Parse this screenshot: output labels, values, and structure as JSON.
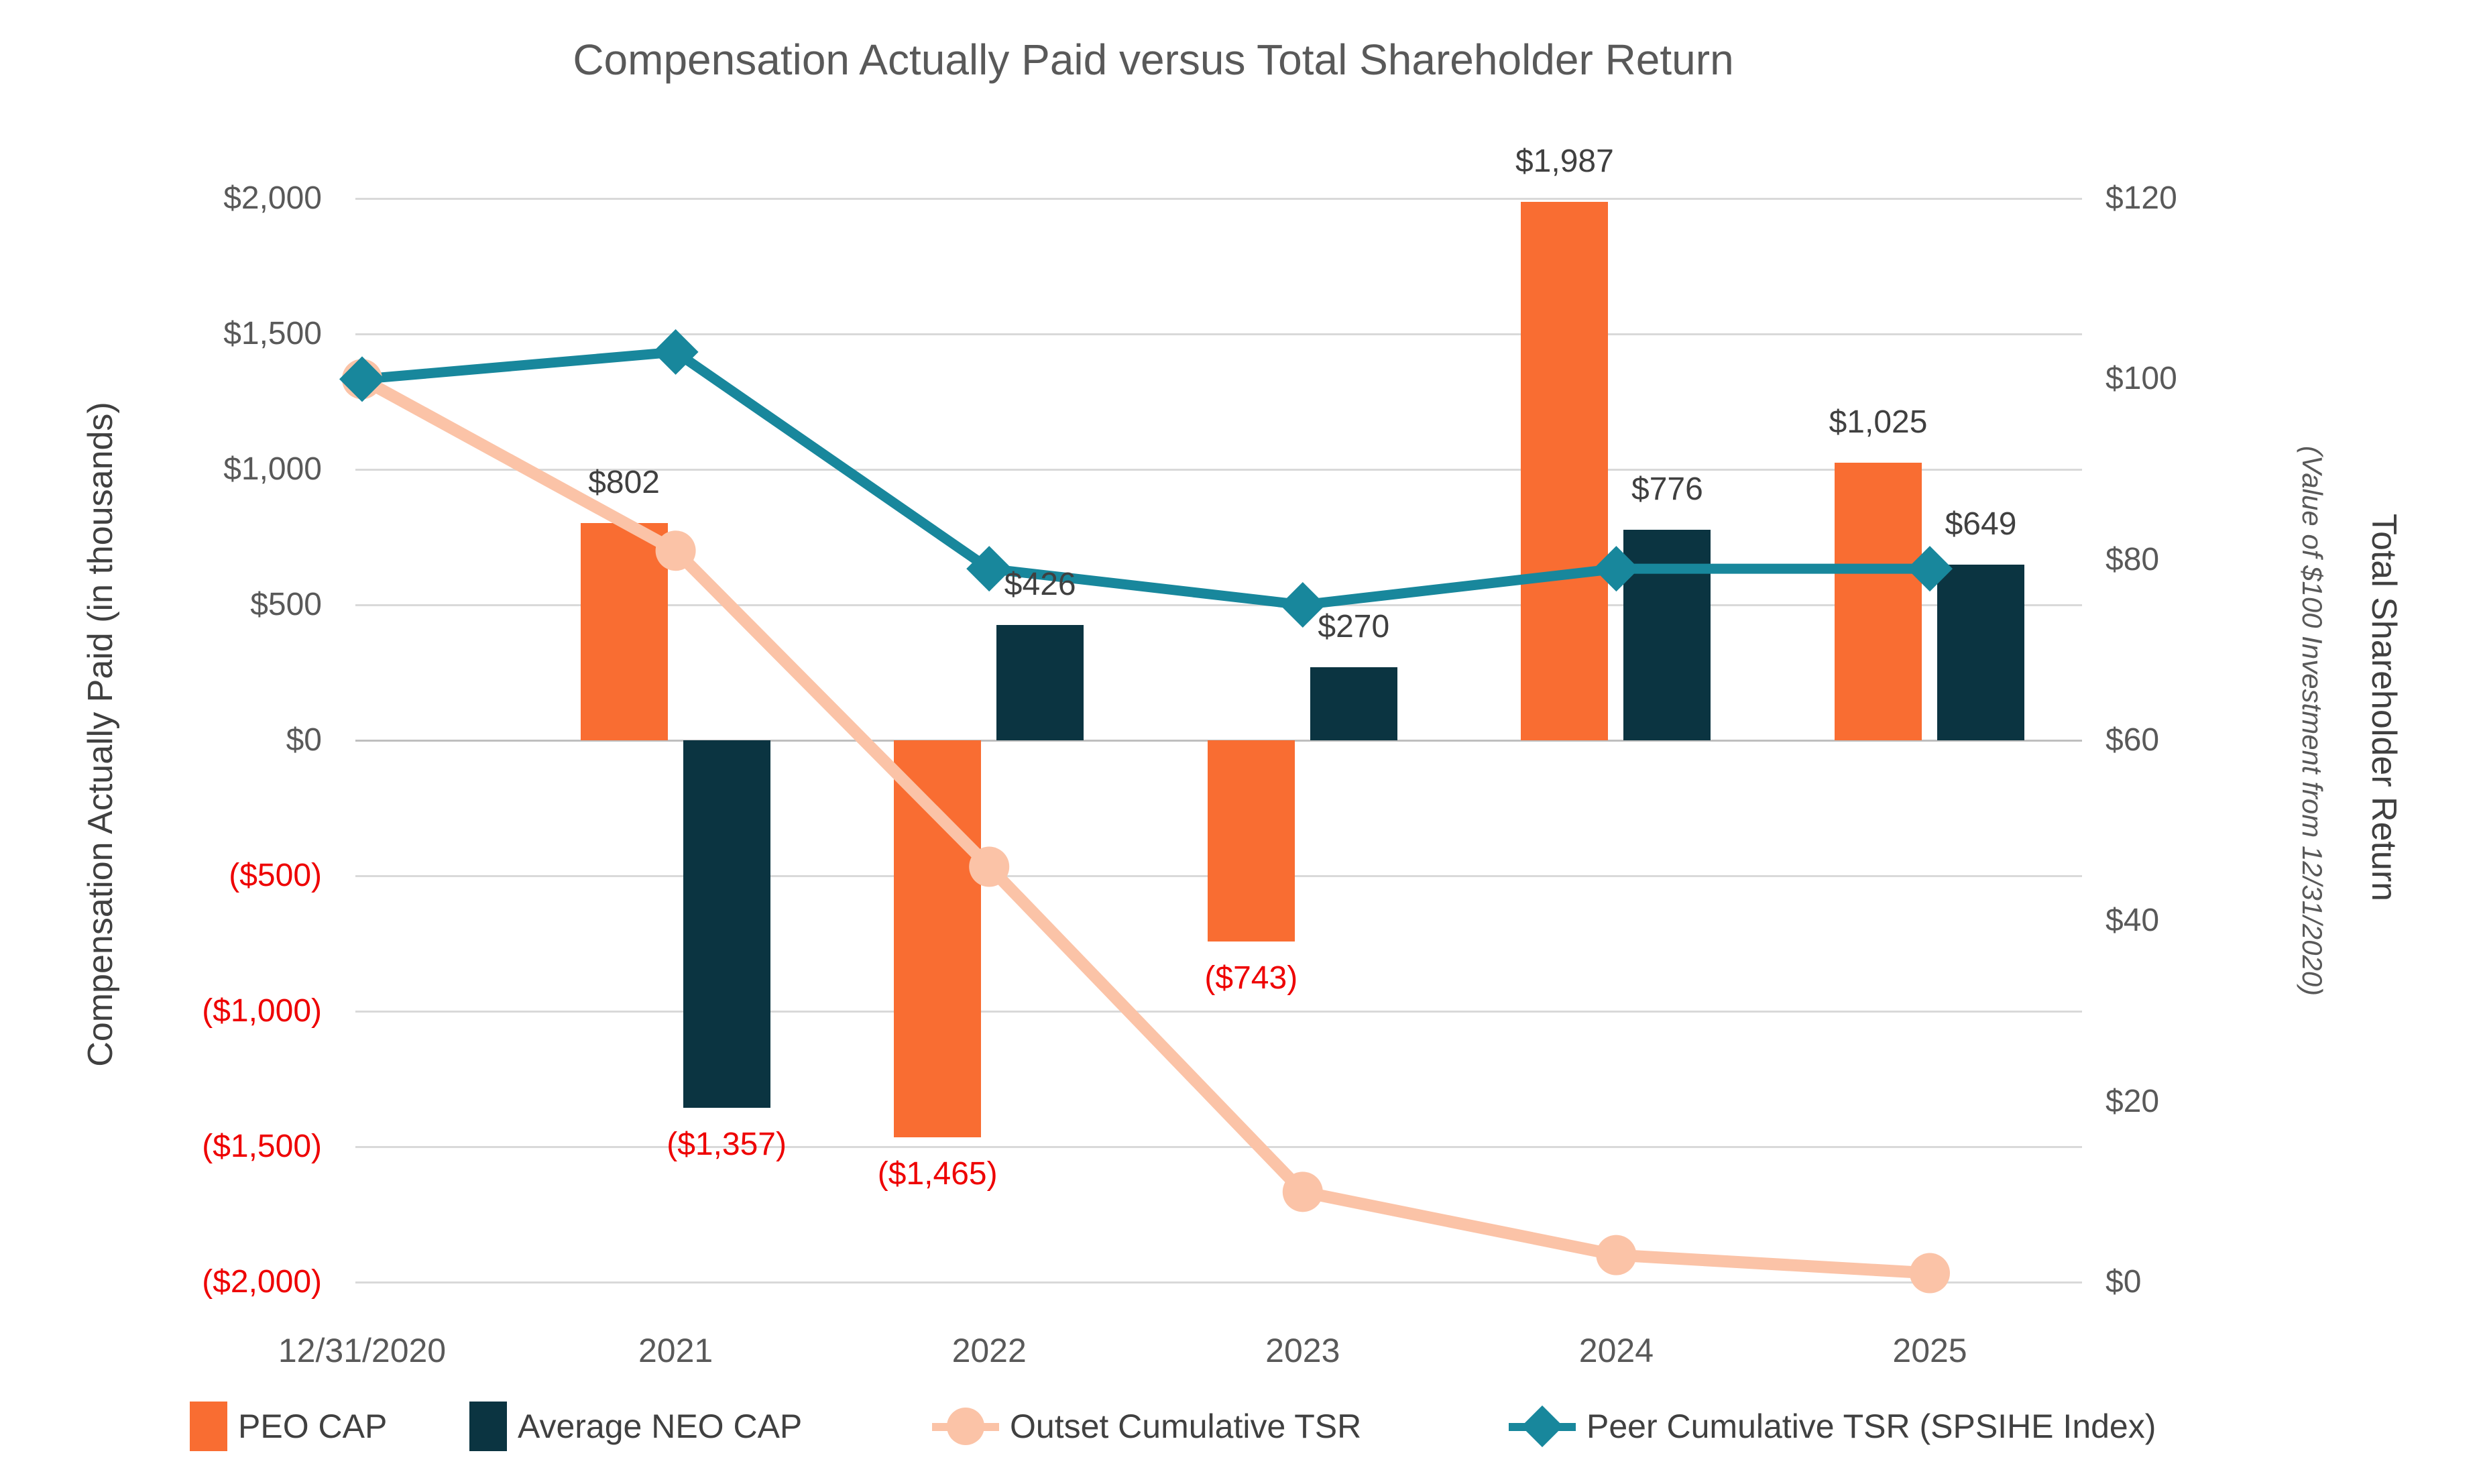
{
  "title": "Compensation Actually Paid versus Total Shareholder Return",
  "left_axis": {
    "title": "Compensation Actually Paid (in thousands)",
    "ticks": [
      {
        "label": "$2,000",
        "value": 2000,
        "negative": false
      },
      {
        "label": "$1,500",
        "value": 1500,
        "negative": false
      },
      {
        "label": "$1,000",
        "value": 1000,
        "negative": false
      },
      {
        "label": "$500",
        "value": 500,
        "negative": false
      },
      {
        "label": "$0",
        "value": 0,
        "negative": false
      },
      {
        "label": "($500)",
        "value": -500,
        "negative": true
      },
      {
        "label": "($1,000)",
        "value": -1000,
        "negative": true
      },
      {
        "label": "($1,500)",
        "value": -1500,
        "negative": true
      },
      {
        "label": "($2,000)",
        "value": -2000,
        "negative": true
      }
    ]
  },
  "right_axis": {
    "title": "Total Shareholder Return",
    "subtitle": "(Value of $100 Investment from 12/31/2020)",
    "ticks": [
      {
        "label": "$120",
        "value": 120
      },
      {
        "label": "$100",
        "value": 100
      },
      {
        "label": "$80",
        "value": 80
      },
      {
        "label": "$60",
        "value": 60
      },
      {
        "label": "$40",
        "value": 40
      },
      {
        "label": "$20",
        "value": 20
      },
      {
        "label": "$0",
        "value": 0
      }
    ]
  },
  "colors": {
    "peo_cap": "#F96D32",
    "avg_neo_cap": "#0B3441",
    "outset_tsr": "#FBC3A7",
    "peer_tsr": "#18879C",
    "gridline": "#D9D9D9",
    "axis_text": "#595959",
    "label_text": "#404040",
    "negative_text": "#EE0000"
  },
  "legend": {
    "items": [
      {
        "label": "PEO CAP",
        "swatch": "bar",
        "color": "#F96D32"
      },
      {
        "label": "Average NEO CAP",
        "swatch": "bar",
        "color": "#0B3441"
      },
      {
        "label": "Outset Cumulative TSR",
        "swatch": "line-circle",
        "color": "#FBC3A7"
      },
      {
        "label": "Peer Cumulative TSR (SPSIHE Index)",
        "swatch": "line-diamond",
        "color": "#18879C"
      }
    ]
  },
  "chart_data": {
    "type": "combo",
    "subtypes": [
      "bar",
      "line"
    ],
    "categories": [
      "12/31/2020",
      "2021",
      "2022",
      "2023",
      "2024",
      "2025"
    ],
    "left_axis_range": [
      -2000,
      2000
    ],
    "right_axis_range": [
      0,
      120
    ],
    "grid": "horizontal",
    "legend_position": "bottom",
    "series": [
      {
        "name": "PEO CAP",
        "type": "bar",
        "axis": "left",
        "color": "#F96D32",
        "values": [
          null,
          802,
          -1465,
          -743,
          1987,
          1025
        ],
        "labels": [
          null,
          "$802",
          "($1,465)",
          "($743)",
          "$1,987",
          "$1,025"
        ]
      },
      {
        "name": "Average NEO CAP",
        "type": "bar",
        "axis": "left",
        "color": "#0B3441",
        "values": [
          null,
          -1357,
          426,
          270,
          776,
          649
        ],
        "labels": [
          null,
          "($1,357)",
          "$426",
          "$270",
          "$776",
          "$649"
        ]
      },
      {
        "name": "Outset Cumulative TSR",
        "type": "line",
        "axis": "right",
        "color": "#FBC3A7",
        "marker": "circle",
        "values": [
          100,
          81,
          46,
          10,
          3,
          1
        ]
      },
      {
        "name": "Peer Cumulative TSR (SPSIHE Index)",
        "type": "line",
        "axis": "right",
        "color": "#18879C",
        "marker": "diamond",
        "values": [
          100,
          103,
          79,
          75,
          79,
          79
        ]
      }
    ]
  }
}
